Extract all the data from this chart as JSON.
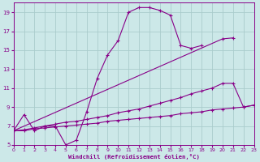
{
  "xlabel": "Windchill (Refroidissement éolien,°C)",
  "xlim": [
    0,
    23
  ],
  "ylim": [
    5,
    20
  ],
  "yticks": [
    5,
    7,
    9,
    11,
    13,
    15,
    17,
    19
  ],
  "xticks": [
    0,
    1,
    2,
    3,
    4,
    5,
    6,
    7,
    8,
    9,
    10,
    11,
    12,
    13,
    14,
    15,
    16,
    17,
    18,
    19,
    20,
    21,
    22,
    23
  ],
  "bg_color": "#cce8e8",
  "grid_color": "#aacccc",
  "line_color": "#880088",
  "curves": [
    {
      "x": [
        0,
        1,
        2,
        3,
        4,
        5,
        6,
        7,
        8,
        9,
        10,
        11,
        12,
        13,
        14,
        15,
        16,
        17,
        18
      ],
      "y": [
        6.5,
        8.2,
        6.5,
        7.0,
        7.0,
        5.0,
        5.5,
        8.5,
        12.0,
        14.5,
        16.0,
        19.0,
        19.5,
        19.5,
        19.2,
        18.7,
        15.5,
        15.2,
        15.5
      ]
    },
    {
      "x": [
        0,
        20,
        21
      ],
      "y": [
        6.5,
        16.2,
        16.3
      ]
    },
    {
      "x": [
        0,
        1,
        2,
        3,
        4,
        5,
        6,
        7,
        8,
        9,
        10,
        11,
        12,
        13,
        14,
        15,
        16,
        17,
        18,
        19,
        20,
        21,
        22,
        23
      ],
      "y": [
        6.5,
        6.6,
        6.8,
        7.0,
        7.2,
        7.4,
        7.5,
        7.7,
        7.9,
        8.1,
        8.4,
        8.6,
        8.8,
        9.1,
        9.4,
        9.7,
        10.0,
        10.4,
        10.7,
        11.0,
        11.5,
        11.5,
        9.0,
        9.2
      ]
    },
    {
      "x": [
        0,
        1,
        2,
        3,
        4,
        5,
        6,
        7,
        8,
        9,
        10,
        11,
        12,
        13,
        14,
        15,
        16,
        17,
        18,
        19,
        20,
        21,
        22,
        23
      ],
      "y": [
        6.5,
        6.5,
        6.7,
        6.8,
        6.9,
        7.0,
        7.1,
        7.2,
        7.3,
        7.5,
        7.6,
        7.7,
        7.8,
        7.9,
        8.0,
        8.1,
        8.3,
        8.4,
        8.5,
        8.7,
        8.8,
        8.9,
        9.0,
        9.2
      ]
    }
  ]
}
